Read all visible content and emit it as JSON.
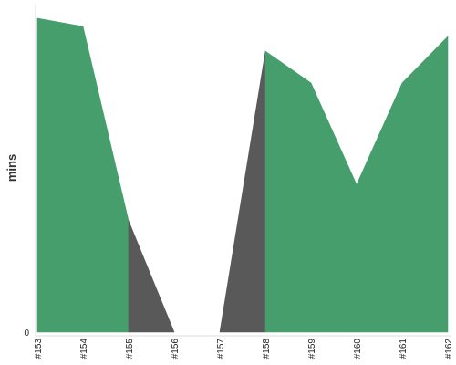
{
  "chart_data": {
    "type": "area",
    "title": "",
    "xlabel": "",
    "ylabel": "mins",
    "categories": [
      "#153",
      "#154",
      "#155",
      "#156",
      "#157",
      "#158",
      "#159",
      "#160",
      "#161",
      "#162"
    ],
    "series": [
      {
        "values": [
          100,
          97.4,
          35.5,
          0,
          0,
          89.5,
          79.4,
          47.0,
          79.4,
          94.2
        ],
        "colors": [
          "#479e6d",
          "#479e6d",
          "#595959",
          "#ffffff",
          "#595959",
          "#479e6d",
          "#479e6d",
          "#479e6d",
          "#479e6d"
        ]
      }
    ],
    "y_tick_labels": [
      "0"
    ],
    "ylim": [
      0,
      100
    ],
    "grid": false,
    "legend": "none",
    "colors": {
      "success": "#479e6d",
      "failure": "#595959",
      "axis": "#dddddd"
    }
  }
}
